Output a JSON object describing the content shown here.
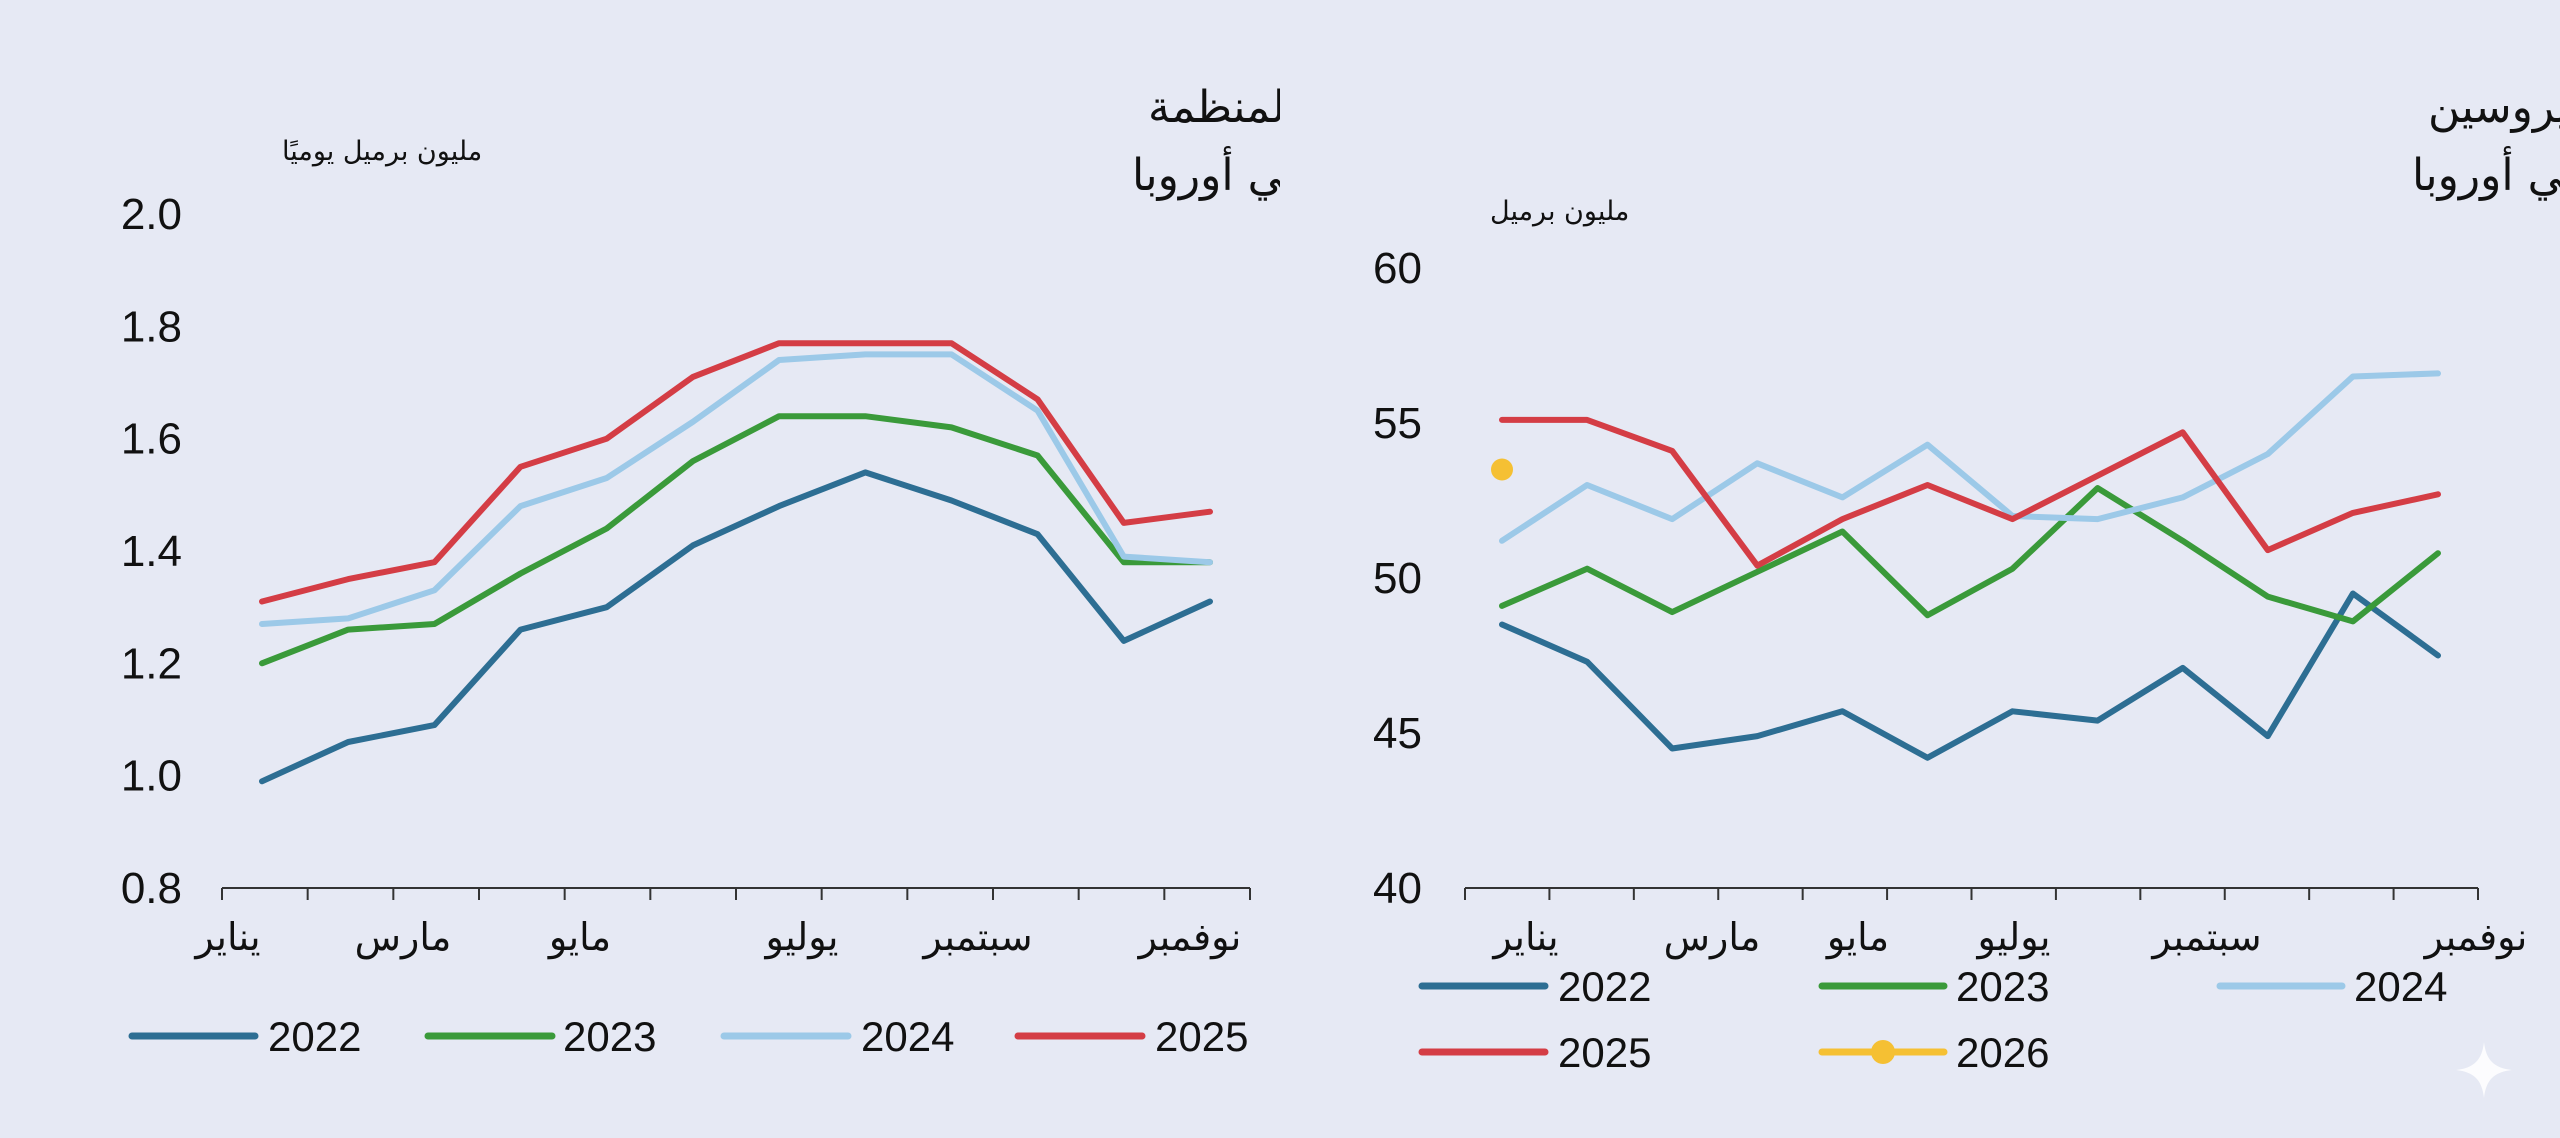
{
  "chart_data": [
    {
      "type": "line",
      "title_line1": "طلب وقود الطائرات/الكيروسين لمنظمة",
      "title_line2": "التعاون الاقتصادي والتنمية في أوروبا",
      "ylabel": "مليون برميل يوميًا",
      "ylim": [
        0.8,
        2.0
      ],
      "yticks": [
        "0.8",
        "1.0",
        "1.2",
        "1.4",
        "1.6",
        "1.8",
        "2.0"
      ],
      "xtick_labels": [
        "يناير",
        "مارس",
        "مايو",
        "يوليو",
        "سبتمبر",
        "نوفمبر"
      ],
      "months": 12,
      "series": [
        {
          "name": "2022",
          "color": "#2d6e93",
          "values": [
            0.99,
            1.06,
            1.09,
            1.26,
            1.3,
            1.41,
            1.48,
            1.54,
            1.49,
            1.43,
            1.24,
            1.31
          ]
        },
        {
          "name": "2023",
          "color": "#3a9a3a",
          "values": [
            1.2,
            1.26,
            1.27,
            1.36,
            1.44,
            1.56,
            1.64,
            1.64,
            1.62,
            1.57,
            1.38,
            1.38
          ]
        },
        {
          "name": "2024",
          "color": "#9cc9e8",
          "values": [
            1.27,
            1.28,
            1.33,
            1.48,
            1.53,
            1.63,
            1.74,
            1.75,
            1.75,
            1.65,
            1.39,
            1.38
          ]
        },
        {
          "name": "2025",
          "color": "#d43d45",
          "values": [
            1.31,
            1.35,
            1.38,
            1.55,
            1.6,
            1.71,
            1.77,
            1.77,
            1.77,
            1.67,
            1.45,
            1.47
          ]
        }
      ]
    },
    {
      "type": "line",
      "title_line1": "المخزونات التجارية لوقود الطائرات/الكيروسين",
      "title_line2": "لمنظمة التعاون الاقتصادي والتنمية في أوروبا",
      "ylabel": "مليون برميل",
      "ylim": [
        40,
        60
      ],
      "yticks": [
        "40",
        "45",
        "50",
        "55",
        "60"
      ],
      "xtick_labels": [
        "يناير",
        "مارس",
        "مايو",
        "يوليو",
        "سبتمبر",
        "نوفمبر"
      ],
      "months": 12,
      "series": [
        {
          "name": "2022",
          "color": "#2d6e93",
          "values": [
            48.5,
            47.3,
            44.5,
            44.9,
            45.7,
            44.2,
            45.7,
            45.4,
            47.1,
            44.9,
            49.5,
            47.5
          ]
        },
        {
          "name": "2023",
          "color": "#3a9a3a",
          "values": [
            49.1,
            50.3,
            48.9,
            50.2,
            51.5,
            48.8,
            50.3,
            52.9,
            51.2,
            49.4,
            48.6,
            50.8
          ]
        },
        {
          "name": "2024",
          "color": "#9cc9e8",
          "values": [
            51.2,
            53.0,
            51.9,
            53.7,
            52.6,
            54.3,
            52.0,
            51.9,
            52.6,
            54.0,
            56.5,
            56.6
          ]
        },
        {
          "name": "2025",
          "color": "#d43d45",
          "values": [
            55.1,
            55.1,
            54.1,
            50.4,
            51.9,
            53.0,
            51.9,
            53.3,
            54.7,
            50.9,
            52.1,
            52.7
          ]
        },
        {
          "name": "2026",
          "color": "#f5c033",
          "marker": true,
          "values": [
            53.5
          ]
        }
      ]
    }
  ]
}
